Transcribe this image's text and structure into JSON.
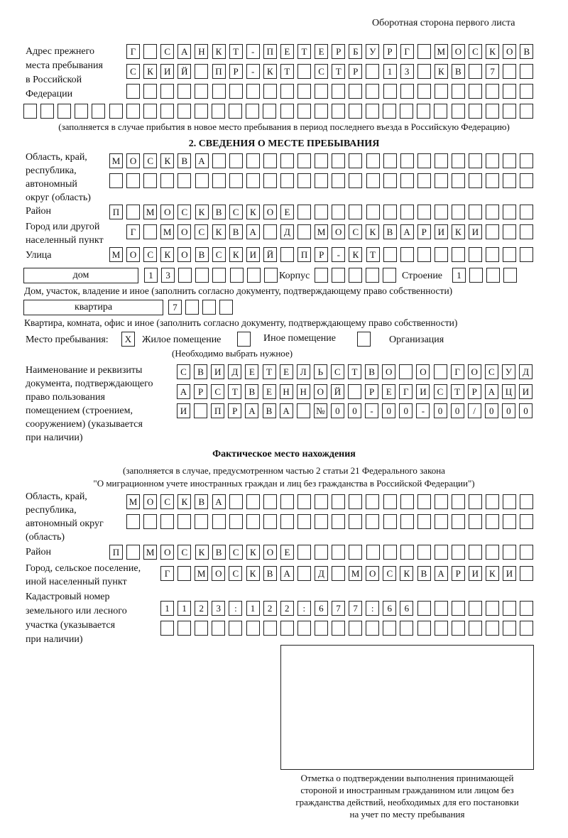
{
  "header": "Оборотная сторона первого листа",
  "prev_address": {
    "label": "Адрес прежнего\nместа пребывания\nв Российской\nФедерации",
    "rows": [
      "Г САНКТ-ПЕТЕРБУРГ МОСКОВ",
      "СКИЙ ПР-КТ СТР 13 КВ 7  ",
      "                        ",
      "                              "
    ],
    "note": "(заполняется в случае прибытия в новое место пребывания в период последнего въезда в Российскую Федерацию)"
  },
  "section2_title": "2. СВЕДЕНИЯ О МЕСТЕ ПРЕБЫВАНИЯ",
  "stay": {
    "region_label": "Область, край,\nреспублика,\nавтономный\nокруг (область)",
    "region_rows": [
      "МОСКВА                   ",
      "                         "
    ],
    "district_label": "Район",
    "district_row": "П МОСКВСКОЕ              ",
    "city_label": "Город или другой\nнаселенный пункт",
    "city_row": "Г МОСКВА Д МОСКВАРИКИ   ",
    "street_label": "Улица",
    "street_row": "МОСКОВСКИЙ ПР-КТ         ",
    "house_type": "дом",
    "house_row": "13      ",
    "korpus_label": "Корпус",
    "korpus_row": "     ",
    "building_label": "Строение",
    "building_row": "1   ",
    "house_note": "Дом, участок, владение и иное (заполнить согласно документу, подтверждающему право собственности)",
    "flat_type": "квартира",
    "flat_row": "7   ",
    "flat_note": "Квартира, комната, офис и иное (заполнить согласно документу, подтверждающему право собственности)",
    "place_label": "Место пребывания:",
    "options": [
      {
        "label": "Жилое помещение",
        "mark": "Х"
      },
      {
        "label": "Иное помещение",
        "mark": ""
      },
      {
        "label": "Организация",
        "mark": ""
      }
    ],
    "place_note": "(Необходимо выбрать нужное)",
    "doc_label": "Наименование и реквизиты\nдокумента, подтверждающего\nправо пользования\nпомещением (строением,\nсооружением) (указывается\nпри наличии)",
    "doc_rows": [
      "СВИДЕТЕЛЬСТВО О ГОСУД",
      "АРСТВЕННОЙ РЕГИСТРАЦИ",
      "И ПРАВА №00-00-00/000"
    ]
  },
  "actual": {
    "title": "Фактическое место нахождения",
    "note1": "(заполняется в случае, предусмотренном частью 2 статьи 21 Федерального закона",
    "note2": "\"О миграционном учете иностранных граждан и лиц без гражданства в Российской Федерации\")",
    "region_label": "Область, край,\nреспублика,\nавтономный округ\n(область)",
    "region_rows": [
      "МОСКВА                  ",
      "                        "
    ],
    "district_label": "Район",
    "district_row": "П МОСКВСКОЕ              ",
    "city_label": "Город, сельское поселение,\nиной населенный пункт",
    "city_row": "Г МОСКВА Д МОСКВАРИКИ ",
    "cadastre_label": "Кадастровый номер\nземельного или лесного\nучастка (указывается\nпри наличии)",
    "cadastre_rows": [
      "1123:122:677:66       ",
      "                      "
    ]
  },
  "stamp_caption": "Отметка о подтверждении выполнения принимающей\nстороной и иностранным гражданином или лицом без\nгражданства действий, необходимых для его постановки\nна учет по месту пребывания"
}
